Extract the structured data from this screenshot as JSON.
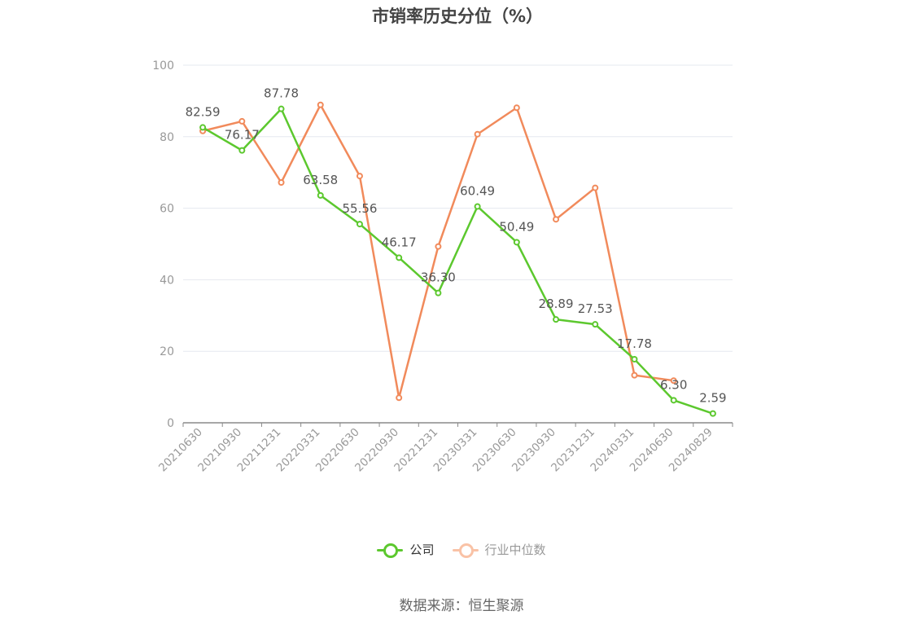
{
  "chart_data": {
    "type": "line",
    "title": "市销率历史分位（%）",
    "categories": [
      "20210630",
      "20210930",
      "20211231",
      "20220331",
      "20220630",
      "20220930",
      "20221231",
      "20230331",
      "20230630",
      "20230930",
      "20231231",
      "20240331",
      "20240630",
      "20240829"
    ],
    "ylim": [
      0,
      100
    ],
    "yticks": [
      0,
      20,
      40,
      60,
      80,
      100
    ],
    "grid": true,
    "legend_position": "bottom",
    "series": [
      {
        "name": "公司",
        "color": "#5cc82e",
        "values": [
          82.59,
          76.17,
          87.78,
          63.58,
          55.56,
          46.17,
          36.3,
          60.49,
          50.49,
          28.89,
          27.53,
          17.78,
          6.3,
          2.59
        ],
        "labels": [
          "82.59",
          "76.17",
          "87.78",
          "63.58",
          "55.56",
          "46.17",
          "36.30",
          "60.49",
          "50.49",
          "28.89",
          "27.53",
          "17.78",
          "6.30",
          "2.59"
        ]
      },
      {
        "name": "行业中位数",
        "color": "#f18a5b",
        "values": [
          81.6,
          84.3,
          67.2,
          88.9,
          69.0,
          7.0,
          49.3,
          80.7,
          88.1,
          56.9,
          65.7,
          13.3,
          11.8,
          null
        ]
      }
    ]
  },
  "source": "数据来源：恒生聚源"
}
